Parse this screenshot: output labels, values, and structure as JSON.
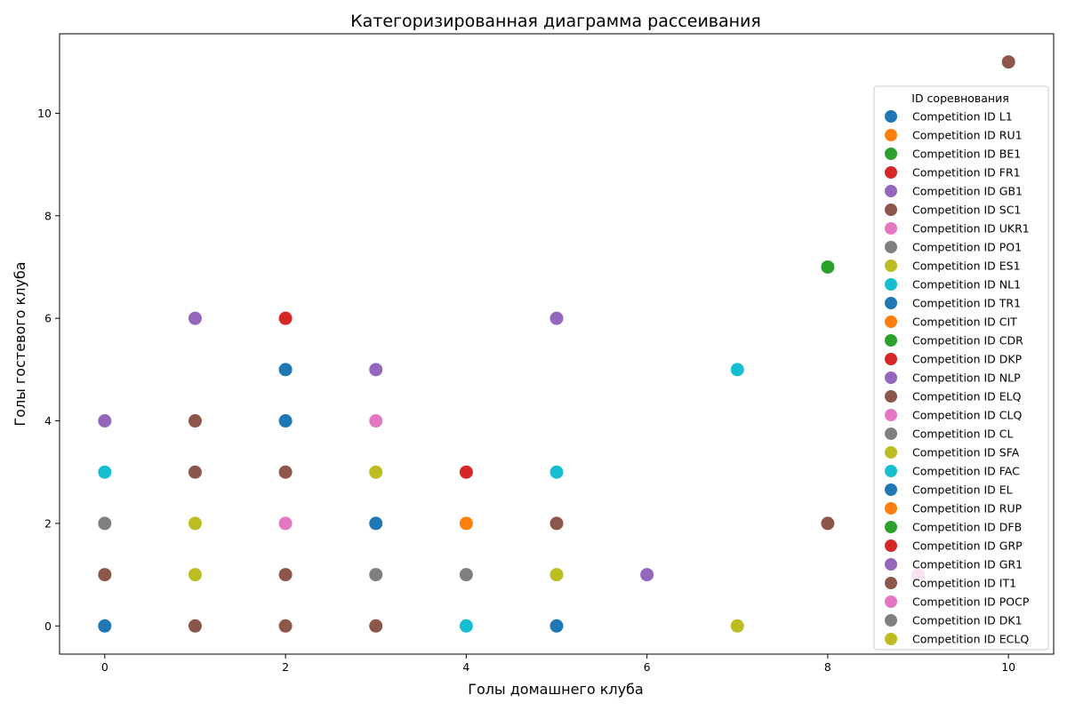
{
  "chart_data": {
    "type": "scatter",
    "title": "Категоризированная диаграмма рассеивания",
    "xlabel": "Голы домашнего клуба",
    "ylabel": "Голы гостевого клуба",
    "xlim": [
      -0.5,
      10.5
    ],
    "ylim": [
      -0.55,
      11.55
    ],
    "xticks": [
      0,
      2,
      4,
      6,
      8,
      10
    ],
    "yticks": [
      0,
      2,
      4,
      6,
      8,
      10
    ],
    "grid": false,
    "legend_title": "ID соревнования",
    "legend_position": "right",
    "series": [
      {
        "name": "Competition ID L1",
        "color": "#1f77b4",
        "points": [
          [
            0,
            0
          ],
          [
            2,
            5
          ],
          [
            2,
            4
          ],
          [
            3,
            2
          ],
          [
            5,
            0
          ]
        ]
      },
      {
        "name": "Competition ID RU1",
        "color": "#ff7f0e",
        "points": [
          [
            4,
            2
          ]
        ]
      },
      {
        "name": "Competition ID BE1",
        "color": "#2ca02c",
        "points": [
          [
            8,
            7
          ]
        ]
      },
      {
        "name": "Competition ID FR1",
        "color": "#d62728",
        "points": [
          [
            2,
            6
          ],
          [
            4,
            3
          ]
        ]
      },
      {
        "name": "Competition ID GB1",
        "color": "#9467bd",
        "points": [
          [
            1,
            6
          ],
          [
            5,
            6
          ],
          [
            3,
            5
          ],
          [
            0,
            4
          ],
          [
            6,
            1
          ]
        ]
      },
      {
        "name": "Competition ID SC1",
        "color": "#8c564b",
        "points": [
          [
            10,
            11
          ],
          [
            1,
            4
          ],
          [
            1,
            3
          ],
          [
            2,
            3
          ],
          [
            5,
            2
          ],
          [
            8,
            2
          ],
          [
            0,
            1
          ],
          [
            2,
            1
          ],
          [
            1,
            0
          ],
          [
            2,
            0
          ],
          [
            3,
            0
          ]
        ]
      },
      {
        "name": "Competition ID UKR1",
        "color": "#e377c2",
        "points": [
          [
            3,
            4
          ],
          [
            2,
            2
          ]
        ]
      },
      {
        "name": "Competition ID PO1",
        "color": "#7f7f7f",
        "points": [
          [
            0,
            2
          ],
          [
            3,
            1
          ],
          [
            4,
            1
          ]
        ]
      },
      {
        "name": "Competition ID ES1",
        "color": "#bcbd22",
        "points": [
          [
            3,
            3
          ],
          [
            1,
            2
          ],
          [
            1,
            1
          ],
          [
            5,
            1
          ],
          [
            7,
            0
          ]
        ]
      },
      {
        "name": "Competition ID NL1",
        "color": "#17becf",
        "points": [
          [
            7,
            5
          ],
          [
            0,
            3
          ],
          [
            5,
            3
          ],
          [
            4,
            0
          ]
        ]
      },
      {
        "name": "Competition ID TR1",
        "color": "#1f77b4",
        "points": []
      },
      {
        "name": "Competition ID CIT",
        "color": "#ff7f0e",
        "points": []
      },
      {
        "name": "Competition ID CDR",
        "color": "#2ca02c",
        "points": []
      },
      {
        "name": "Competition ID DKP",
        "color": "#d62728",
        "points": []
      },
      {
        "name": "Competition ID NLP",
        "color": "#9467bd",
        "points": []
      },
      {
        "name": "Competition ID ELQ",
        "color": "#8c564b",
        "points": []
      },
      {
        "name": "Competition ID CLQ",
        "color": "#e377c2",
        "points": [
          [
            9,
            1
          ]
        ]
      },
      {
        "name": "Competition ID CL",
        "color": "#7f7f7f",
        "points": []
      },
      {
        "name": "Competition ID SFA",
        "color": "#bcbd22",
        "points": []
      },
      {
        "name": "Competition ID FAC",
        "color": "#17becf",
        "points": []
      },
      {
        "name": "Competition ID EL",
        "color": "#1f77b4",
        "points": []
      },
      {
        "name": "Competition ID RUP",
        "color": "#ff7f0e",
        "points": []
      },
      {
        "name": "Competition ID DFB",
        "color": "#2ca02c",
        "points": []
      },
      {
        "name": "Competition ID GRP",
        "color": "#d62728",
        "points": []
      },
      {
        "name": "Competition ID GR1",
        "color": "#9467bd",
        "points": []
      },
      {
        "name": "Competition ID IT1",
        "color": "#8c564b",
        "points": []
      },
      {
        "name": "Competition ID POCP",
        "color": "#e377c2",
        "points": []
      },
      {
        "name": "Competition ID DK1",
        "color": "#7f7f7f",
        "points": []
      },
      {
        "name": "Competition ID ECLQ",
        "color": "#bcbd22",
        "points": []
      }
    ]
  }
}
